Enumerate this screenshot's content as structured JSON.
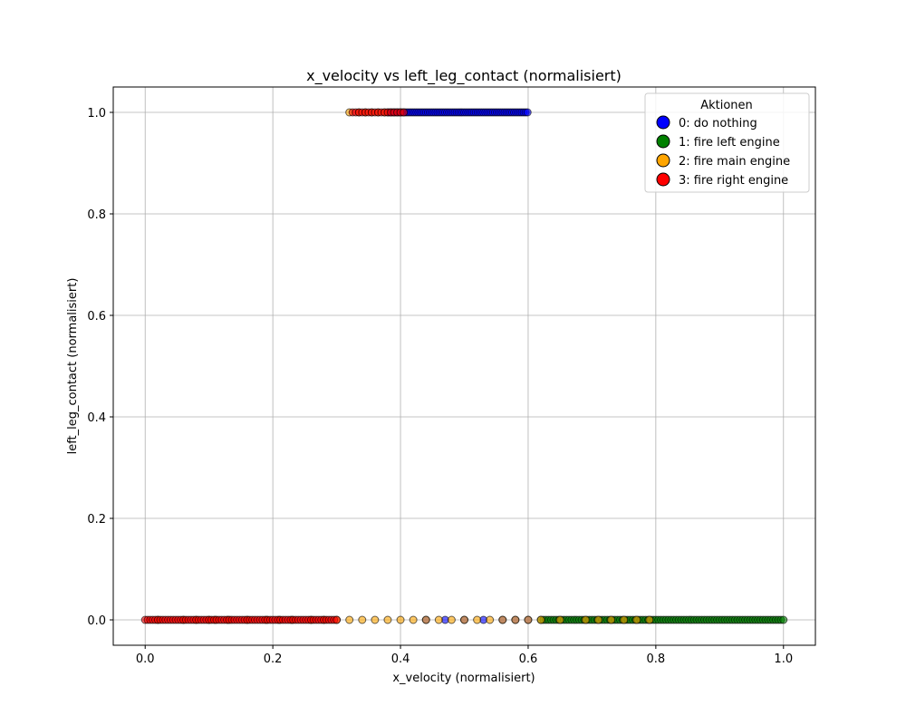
{
  "chart_data": {
    "type": "scatter",
    "title": "x_velocity vs left_leg_contact (normalisiert)",
    "xlabel": "x_velocity (normalisiert)",
    "ylabel": "left_leg_contact (normalisiert)",
    "xlim": [
      -0.05,
      1.05
    ],
    "ylim": [
      -0.05,
      1.05
    ],
    "x_ticks": [
      0.0,
      0.2,
      0.4,
      0.6,
      0.8,
      1.0
    ],
    "y_ticks": [
      0.0,
      0.2,
      0.4,
      0.6,
      0.8,
      1.0
    ],
    "x_tick_labels": [
      "0.0",
      "0.2",
      "0.4",
      "0.6",
      "0.8",
      "1.0"
    ],
    "y_tick_labels": [
      "0.0",
      "0.2",
      "0.4",
      "0.6",
      "0.8",
      "1.0"
    ],
    "grid": true,
    "legend": {
      "title": "Aktionen",
      "placement": "top-right",
      "entries": [
        "0: do nothing",
        "1: fire left engine",
        "2: fire main engine",
        "3: fire right engine"
      ]
    },
    "series": [
      {
        "name": "0: do nothing",
        "color": "#0000ff",
        "points_y1": {
          "x_start": 0.38,
          "x_end": 0.6,
          "step": 0.003
        },
        "points_y0": [
          0.44,
          0.47,
          0.5,
          0.53,
          0.56,
          0.58,
          0.6
        ]
      },
      {
        "name": "1: fire left engine",
        "color": "#008000",
        "points_y1": [],
        "points_y0": {
          "x_start": 0.62,
          "x_end": 1.0,
          "step": 0.004
        }
      },
      {
        "name": "2: fire main engine",
        "color": "#ffa500",
        "points_y1": [
          0.32,
          0.335,
          0.345,
          0.355,
          0.365,
          0.375
        ],
        "points_y0": [
          0.02,
          0.06,
          0.08,
          0.1,
          0.11,
          0.13,
          0.16,
          0.19,
          0.21,
          0.23,
          0.26,
          0.28,
          0.3,
          0.32,
          0.34,
          0.36,
          0.38,
          0.4,
          0.42,
          0.44,
          0.46,
          0.48,
          0.5,
          0.52,
          0.54,
          0.56,
          0.58,
          0.6,
          0.62,
          0.65,
          0.69,
          0.71,
          0.73,
          0.75,
          0.77,
          0.79
        ]
      },
      {
        "name": "3: fire right engine",
        "color": "#ff0000",
        "points_y1": {
          "x_start": 0.325,
          "x_end": 0.405,
          "step": 0.005
        },
        "points_y0": {
          "x_start": 0.0,
          "x_end": 0.3,
          "step": 0.004
        }
      }
    ]
  }
}
